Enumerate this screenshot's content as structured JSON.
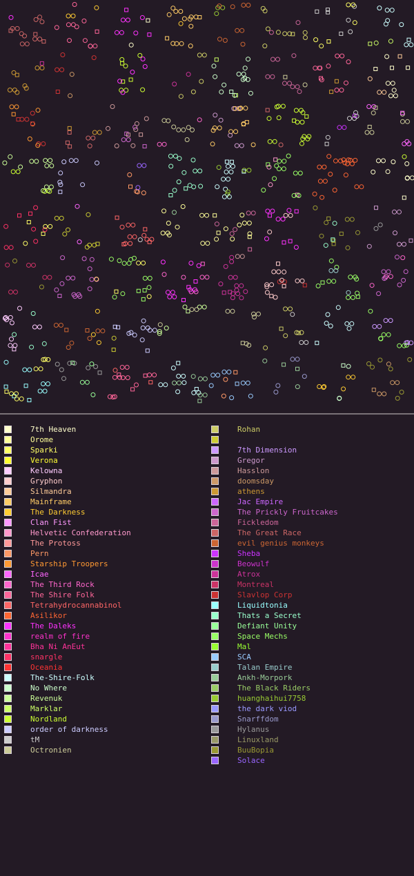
{
  "background": "#231a25",
  "legend": {
    "left_column": [
      {
        "name": "7th Heaven",
        "color": "#ffffcc"
      },
      {
        "name": "Orome",
        "color": "#ffff99"
      },
      {
        "name": "Sparki",
        "color": "#ffff66"
      },
      {
        "name": "Verona",
        "color": "#ffff33"
      },
      {
        "name": "Kelowna",
        "color": "#ffccff"
      },
      {
        "name": "Gryphon",
        "color": "#ffcccc"
      },
      {
        "name": "Silmandra",
        "color": "#ffcc99"
      },
      {
        "name": "Mainframe",
        "color": "#ffcc66"
      },
      {
        "name": "The Darkness",
        "color": "#ffcc33"
      },
      {
        "name": "Clan Fist",
        "color": "#ff99ff"
      },
      {
        "name": "Helvetic Confederation",
        "color": "#ff99cc"
      },
      {
        "name": "The Protoss",
        "color": "#ff9999"
      },
      {
        "name": "Pern",
        "color": "#ff9966"
      },
      {
        "name": "Starship Troopers",
        "color": "#ff9933"
      },
      {
        "name": "Icae",
        "color": "#ff66ff"
      },
      {
        "name": "The Third Rock",
        "color": "#ff66cc"
      },
      {
        "name": "The Shire Folk",
        "color": "#ff6699"
      },
      {
        "name": "Tetrahydrocannabinol",
        "color": "#ff6666"
      },
      {
        "name": "Asilikor",
        "color": "#ff6633"
      },
      {
        "name": "The Daleks",
        "color": "#ff33ff"
      },
      {
        "name": "realm of fire",
        "color": "#ff33cc"
      },
      {
        "name": "Bha Ni AnEut",
        "color": "#ff3399"
      },
      {
        "name": "snargle",
        "color": "#ff3366"
      },
      {
        "name": "Oceania",
        "color": "#ff3333"
      },
      {
        "name": "The-Shire-Folk",
        "color": "#ccffff"
      },
      {
        "name": "No Where",
        "color": "#ccffcc"
      },
      {
        "name": "Revenuk",
        "color": "#ccff99"
      },
      {
        "name": "Marklar",
        "color": "#ccff66"
      },
      {
        "name": "Nordland",
        "color": "#ccff33"
      },
      {
        "name": "order of darkness",
        "color": "#ccccff"
      },
      {
        "name": "tM",
        "color": "#cccccc"
      },
      {
        "name": "Octronien",
        "color": "#cccc99"
      }
    ],
    "right_column": [
      {
        "name": "Rohan",
        "color": "#cccc66"
      },
      {
        "name": "",
        "color": "#cccc33"
      },
      {
        "name": "7th Dimension",
        "color": "#cc99ff"
      },
      {
        "name": "Gregor",
        "color": "#cc99cc"
      },
      {
        "name": "Hasslon",
        "color": "#cc9999"
      },
      {
        "name": "doomsday",
        "color": "#cc9966"
      },
      {
        "name": "athens",
        "color": "#cc9933"
      },
      {
        "name": "Jac Empire",
        "color": "#cc66ff"
      },
      {
        "name": "The Prickly Fruitcakes",
        "color": "#cc66cc"
      },
      {
        "name": "Fickledom",
        "color": "#cc6699"
      },
      {
        "name": "The Great Race",
        "color": "#cc6666"
      },
      {
        "name": "evil genius monkeys",
        "color": "#cc6633"
      },
      {
        "name": "Sheba",
        "color": "#cc33ff"
      },
      {
        "name": "Beowulf",
        "color": "#cc33cc"
      },
      {
        "name": "Atrox",
        "color": "#cc3399"
      },
      {
        "name": "Montreal",
        "color": "#cc3366"
      },
      {
        "name": "Slavlop Corp",
        "color": "#cc3333"
      },
      {
        "name": "Liquidtonia",
        "color": "#99ffff"
      },
      {
        "name": "Thats a Secret",
        "color": "#99ffcc"
      },
      {
        "name": "Defiant Unity",
        "color": "#99ff99"
      },
      {
        "name": "Space Mechs",
        "color": "#99ff66"
      },
      {
        "name": "Mal",
        "color": "#99ff33"
      },
      {
        "name": "SCA",
        "color": "#99ccff"
      },
      {
        "name": "Talan Empire",
        "color": "#99cccc"
      },
      {
        "name": "Ankh-Morpork",
        "color": "#99cc99"
      },
      {
        "name": "The Black Riders",
        "color": "#99cc66"
      },
      {
        "name": "huanghaihui7758",
        "color": "#99cc33"
      },
      {
        "name": "the dark viod",
        "color": "#9999ff"
      },
      {
        "name": "Snarffdom",
        "color": "#9999cc"
      },
      {
        "name": "Hylanus",
        "color": "#999999"
      },
      {
        "name": "Linuxland",
        "color": "#999966"
      },
      {
        "name": "BuuBopia",
        "color": "#999933"
      },
      {
        "name": "Solace",
        "color": "#9966ff"
      }
    ]
  }
}
